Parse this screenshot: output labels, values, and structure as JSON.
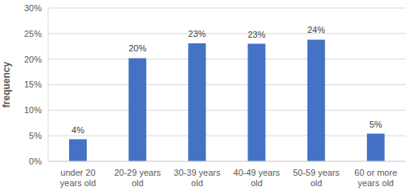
{
  "chart_data": {
    "type": "bar",
    "y_label": "frequency",
    "categories": [
      "under 20 years old",
      "20-29 years old",
      "30-39 years old",
      "40-49 years old",
      "50-59 years old",
      "60 or more years old"
    ],
    "values": [
      4.3,
      20.2,
      23.1,
      23,
      23.8,
      5.4
    ],
    "value_labels": [
      "4%",
      "20%",
      "23%",
      "23%",
      "24%",
      "5%"
    ],
    "color": "#4472c4",
    "ylim": [
      0,
      30
    ],
    "yticks": [
      {
        "value": 0,
        "label": "0%"
      },
      {
        "value": 5,
        "label": "5%"
      },
      {
        "value": 10,
        "label": "10%"
      },
      {
        "value": 15,
        "label": "15%"
      },
      {
        "value": 20,
        "label": "20%"
      },
      {
        "value": 25,
        "label": "25%"
      },
      {
        "value": 30,
        "label": "30%"
      }
    ],
    "grid": true,
    "data_labels": true
  }
}
